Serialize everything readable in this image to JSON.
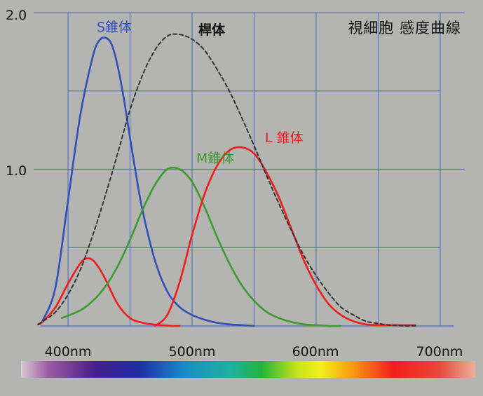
{
  "chart_data": {
    "type": "line",
    "title": "視細胞 感度曲線",
    "x_ticks": [
      "400nm",
      "500nm",
      "600nm",
      "700nm"
    ],
    "y_ticks": [
      "2.0",
      "1.0"
    ],
    "xlim": [
      380,
      700
    ],
    "ylim": [
      0,
      2.0
    ],
    "grid": true,
    "colors": {
      "S": "#3050b8",
      "M": "#3e9a2e",
      "L": "#f01c1c",
      "rod": "#333333",
      "grid": "#5c74c4"
    },
    "series": [
      {
        "name": "S錐体",
        "color": "#3050b8",
        "dash": false,
        "x": [
          376,
          380,
          390,
          400,
          410,
          420,
          425,
          430,
          435,
          440,
          445,
          450,
          455,
          460,
          470,
          480,
          490,
          500,
          510,
          520,
          530,
          540,
          550
        ],
        "y": [
          0.01,
          0.04,
          0.25,
          0.8,
          1.35,
          1.72,
          1.82,
          1.84,
          1.8,
          1.66,
          1.45,
          1.2,
          0.96,
          0.74,
          0.42,
          0.22,
          0.12,
          0.07,
          0.04,
          0.02,
          0.01,
          0.005,
          0.0
        ]
      },
      {
        "name": "",
        "color": "#f01c1c",
        "dash": false,
        "x": [
          376,
          380,
          390,
          400,
          410,
          415,
          420,
          425,
          430,
          440,
          450,
          460,
          470,
          480,
          485,
          490
        ],
        "y": [
          0.01,
          0.03,
          0.12,
          0.27,
          0.4,
          0.43,
          0.42,
          0.37,
          0.3,
          0.14,
          0.05,
          0.02,
          0.008,
          0.002,
          0.0,
          0.0
        ]
      },
      {
        "name": "M錐体",
        "color": "#3e9a2e",
        "dash": false,
        "x": [
          395,
          410,
          420,
          430,
          440,
          450,
          460,
          470,
          480,
          490,
          500,
          510,
          520,
          530,
          540,
          550,
          560,
          570,
          580,
          590,
          600,
          610,
          620
        ],
        "y": [
          0.05,
          0.1,
          0.16,
          0.25,
          0.38,
          0.55,
          0.74,
          0.9,
          1.0,
          1.0,
          0.92,
          0.76,
          0.57,
          0.4,
          0.26,
          0.16,
          0.09,
          0.05,
          0.025,
          0.01,
          0.005,
          0.0,
          0.0
        ]
      },
      {
        "name": "L 錐体",
        "color": "#f01c1c",
        "dash": false,
        "x": [
          470,
          480,
          490,
          500,
          510,
          520,
          530,
          540,
          550,
          560,
          570,
          580,
          590,
          600,
          610,
          620,
          630,
          640,
          650,
          660,
          670,
          680
        ],
        "y": [
          0.0,
          0.07,
          0.28,
          0.58,
          0.84,
          1.02,
          1.12,
          1.14,
          1.1,
          0.98,
          0.82,
          0.62,
          0.42,
          0.26,
          0.14,
          0.07,
          0.03,
          0.01,
          0.005,
          0.005,
          0.005,
          0.005
        ]
      },
      {
        "name": "桿体",
        "color": "#333333",
        "dash": true,
        "x": [
          376,
          380,
          390,
          400,
          410,
          420,
          430,
          440,
          450,
          460,
          470,
          480,
          490,
          500,
          510,
          520,
          530,
          540,
          550,
          560,
          570,
          580,
          590,
          600,
          610,
          620,
          630,
          640,
          650,
          660,
          670,
          680
        ],
        "y": [
          0.01,
          0.03,
          0.09,
          0.2,
          0.36,
          0.58,
          0.83,
          1.1,
          1.38,
          1.6,
          1.76,
          1.85,
          1.86,
          1.83,
          1.76,
          1.64,
          1.5,
          1.33,
          1.15,
          0.96,
          0.78,
          0.61,
          0.45,
          0.32,
          0.21,
          0.12,
          0.07,
          0.03,
          0.015,
          0.005,
          0.0,
          0.0
        ]
      }
    ]
  }
}
